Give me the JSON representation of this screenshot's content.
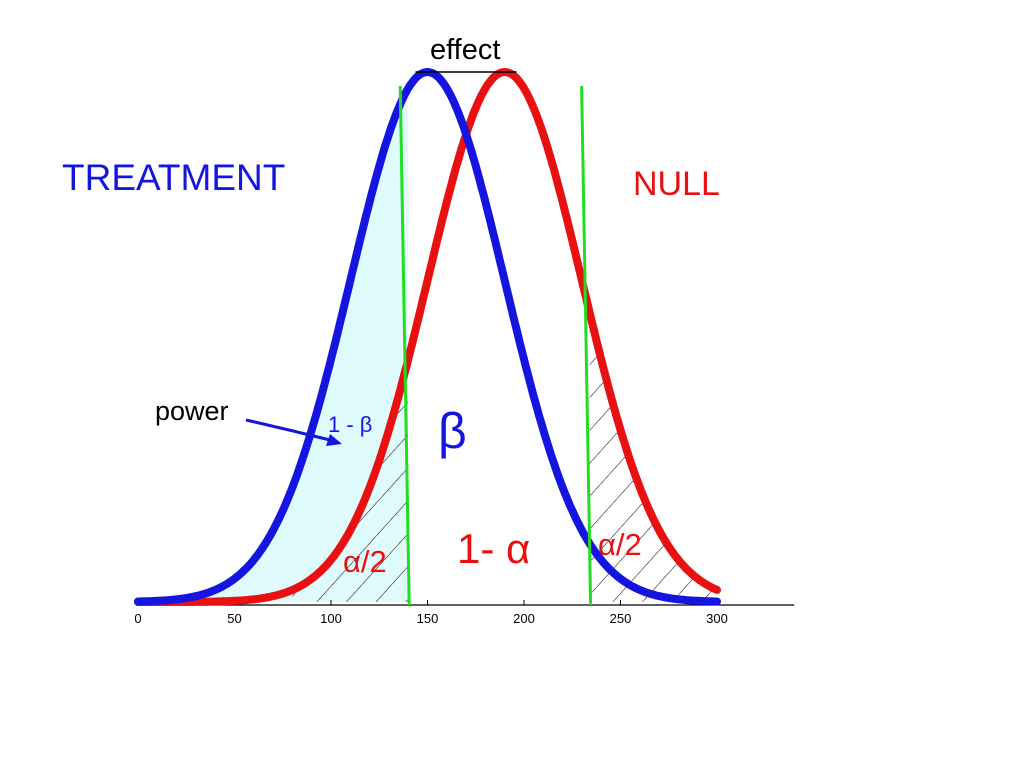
{
  "chart_data": {
    "type": "area",
    "xlim": [
      0,
      340
    ],
    "x_ticks": [
      0,
      50,
      100,
      150,
      200,
      250,
      300
    ],
    "series": [
      {
        "name": "TREATMENT",
        "color": "#1515e0",
        "mean": 150,
        "sd": 40,
        "x_range": [
          0,
          300
        ]
      },
      {
        "name": "NULL",
        "color": "#e81010",
        "mean": 190,
        "sd": 40,
        "x_range": [
          0,
          300
        ]
      }
    ],
    "critical_lines": [
      {
        "x": 140,
        "color": "#22dd22"
      },
      {
        "x": 234,
        "color": "#22dd22"
      }
    ],
    "shaded_region": {
      "label": "1 - β",
      "from_x": 0,
      "to_x": 140,
      "fill": "#e0fbfb"
    },
    "hatched_regions": [
      {
        "label": "α/2",
        "from_x": 80,
        "to_x": 140
      },
      {
        "label": "α/2",
        "from_x": 234,
        "to_x": 300
      }
    ],
    "annotations": {
      "effect": "effect",
      "power": "power",
      "one_minus_beta": "1 - β",
      "beta": "β",
      "one_minus_alpha": "1- α",
      "alpha_left": "α/2",
      "alpha_right": "α/2"
    }
  }
}
